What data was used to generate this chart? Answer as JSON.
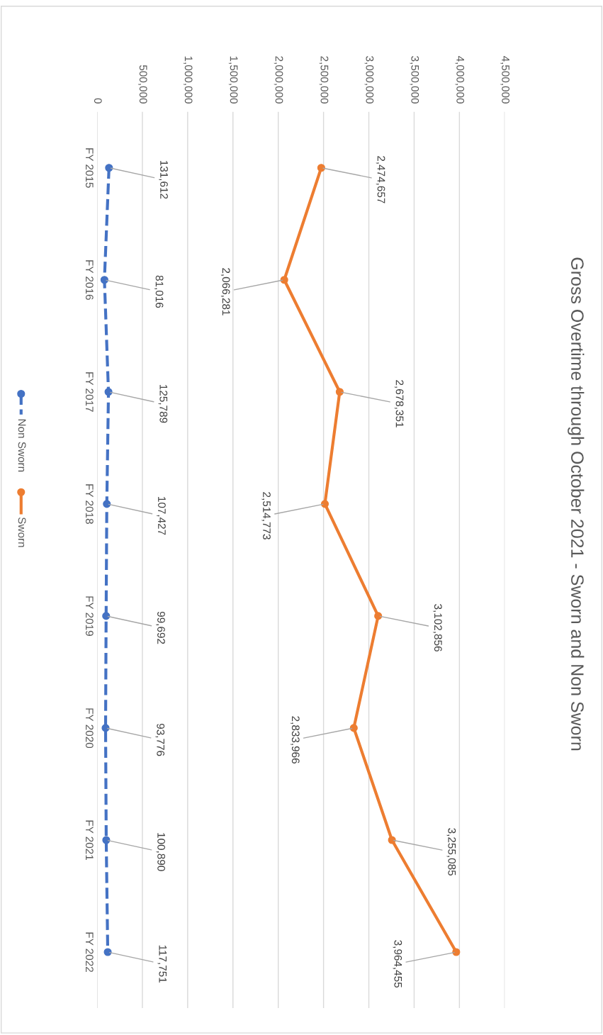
{
  "chart_data": {
    "type": "line",
    "title": "Gross Overtime through October 2021 - Sworn and Non Sworn",
    "orientation": "horizontal",
    "categories": [
      "FY 2015",
      "FY 2016",
      "FY 2017",
      "FY 2018",
      "FY 2019",
      "FY 2020",
      "FY 2021",
      "FY 2022"
    ],
    "series": [
      {
        "name": "Non Sworn",
        "color": "#4472c4",
        "line_style": "dashed",
        "values": [
          131612,
          81016,
          125789,
          107427,
          99692,
          93776,
          100890,
          117751
        ],
        "value_labels": [
          "131,612",
          "81,016",
          "125,789",
          "107,427",
          "99,692",
          "93,776",
          "100,890",
          "117,751"
        ]
      },
      {
        "name": "Sworn",
        "color": "#ed7d31",
        "line_style": "solid",
        "values": [
          2474657,
          2066281,
          2678351,
          2514773,
          3102856,
          2833966,
          3255085,
          3964455
        ],
        "value_labels": [
          "2,474,657",
          "2,066,281",
          "2,678,351",
          "2,514,773",
          "3,102,856",
          "2,833,966",
          "3,255,085",
          "3,964,455"
        ]
      }
    ],
    "xlim": [
      0,
      4500000
    ],
    "xticks": [
      {
        "value": 0,
        "label": "0"
      },
      {
        "value": 500000,
        "label": "500,000"
      },
      {
        "value": 1000000,
        "label": "1,000,000"
      },
      {
        "value": 1500000,
        "label": "1,500,000"
      },
      {
        "value": 2000000,
        "label": "2,000,000"
      },
      {
        "value": 2500000,
        "label": "2,500,000"
      },
      {
        "value": 3000000,
        "label": "3,000,000"
      },
      {
        "value": 3500000,
        "label": "3,500,000"
      },
      {
        "value": 4000000,
        "label": "4,000,000"
      },
      {
        "value": 4500000,
        "label": "4,500,000"
      }
    ],
    "grid": "x",
    "marker": "circle",
    "legend": "left"
  }
}
